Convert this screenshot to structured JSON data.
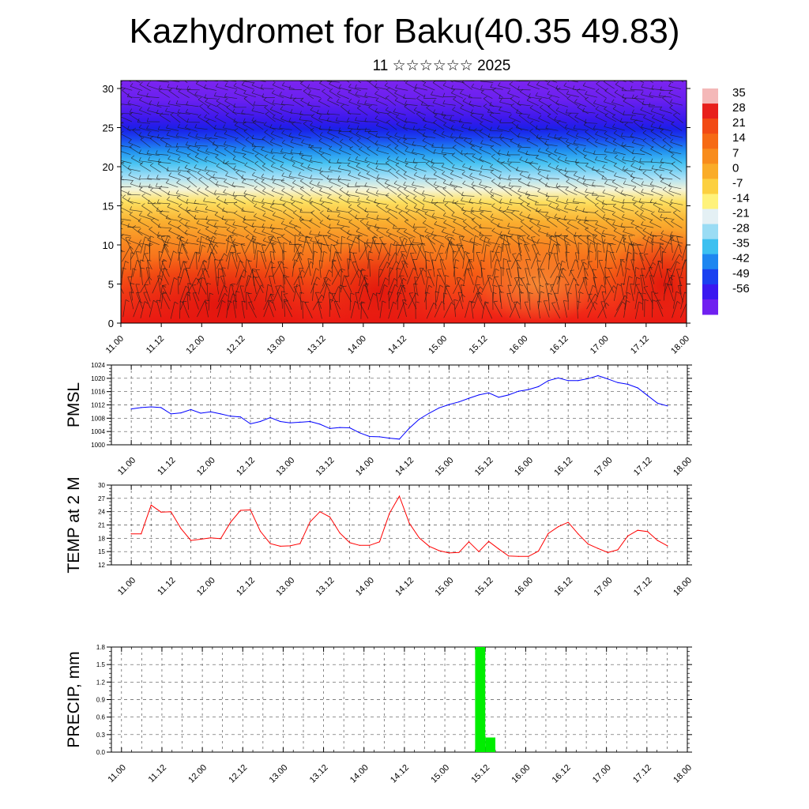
{
  "header": {
    "title": "Kazhydromet for Baku(40.35 49.83)",
    "subtitle": "11 ☆☆☆☆☆☆ 2025"
  },
  "colors": {
    "pressure_line": "#0000ff",
    "temperature_line": "#ff0000",
    "precip_bar": "#00ee00"
  },
  "chart_data": [
    {
      "type": "heatmap",
      "title": "",
      "ylabel": "",
      "xlabel": "",
      "ylim": [
        0,
        30
      ],
      "y_ticks": [
        0,
        5,
        10,
        15,
        20,
        25,
        30
      ],
      "x_ticks": [
        "11.00",
        "11.12",
        "12.00",
        "12.12",
        "13.00",
        "13.12",
        "14.00",
        "14.12",
        "15.00",
        "15.12",
        "16.00",
        "16.12",
        "17.00",
        "17.12",
        "18.00"
      ],
      "colorbar_labels": [
        "35",
        "28",
        "21",
        "14",
        "7",
        "0",
        "-7",
        "-14",
        "-21",
        "-28",
        "-35",
        "-42",
        "-49",
        "-56"
      ],
      "colorbar_colors": [
        "#f4b8b8",
        "#e8201c",
        "#f24a14",
        "#f66a14",
        "#f88c1c",
        "#faac28",
        "#fcd040",
        "#fff27a",
        "#e4f0f4",
        "#9adcf4",
        "#3cc0f0",
        "#1e86f0",
        "#1a40f0",
        "#3a18f0",
        "#7020f0"
      ],
      "overlay": "wind barbs"
    },
    {
      "type": "line",
      "ylabel": "PMSL",
      "ylim": [
        1000,
        1024
      ],
      "y_ticks": [
        1000,
        1004,
        1008,
        1012,
        1016,
        1020,
        1024
      ],
      "x_ticks": [
        "11.00",
        "11.12",
        "12.00",
        "12.12",
        "13.00",
        "13.12",
        "14.00",
        "14.12",
        "15.00",
        "15.12",
        "16.00",
        "16.12",
        "17.00",
        "17.12",
        "18.00"
      ],
      "x_range_hours": [
        -6,
        168
      ],
      "series": [
        {
          "x": [
            0,
            3,
            6,
            9,
            12,
            15,
            18,
            21,
            24,
            27,
            30,
            33,
            36,
            39,
            42,
            45,
            48,
            51,
            54,
            57,
            60,
            63,
            66,
            69,
            72,
            75,
            78,
            81,
            84,
            87,
            90,
            93,
            96,
            99,
            102,
            105,
            108,
            111,
            114,
            117,
            120,
            123,
            126,
            129,
            132,
            135,
            138,
            141,
            144,
            147,
            150,
            153,
            156,
            159,
            162
          ],
          "values": [
            1010.8,
            1011.2,
            1011.4,
            1011.2,
            1009.3,
            1009.6,
            1010.6,
            1009.5,
            1009.9,
            1009.3,
            1008.6,
            1008.4,
            1006.3,
            1007.0,
            1008.2,
            1007.0,
            1006.6,
            1006.8,
            1007.0,
            1006.2,
            1004.9,
            1005.2,
            1005.1,
            1003.6,
            1002.5,
            1002.4,
            1002.0,
            1001.7,
            1005.0,
            1007.7,
            1009.5,
            1011.1,
            1012.1,
            1012.9,
            1014.0,
            1015.0,
            1015.6,
            1014.3,
            1015.0,
            1016.1,
            1016.6,
            1017.5,
            1019.3,
            1020.1,
            1019.3,
            1019.3,
            1019.9,
            1020.8,
            1019.8,
            1018.7,
            1018.2,
            1017.1,
            1014.8,
            1012.5,
            1011.7
          ]
        }
      ]
    },
    {
      "type": "line",
      "ylabel": "TEMP at 2 M",
      "ylim": [
        12,
        30
      ],
      "y_ticks": [
        12,
        15,
        18,
        21,
        24,
        27,
        30
      ],
      "x_ticks": [
        "11.00",
        "11.12",
        "12.00",
        "12.12",
        "13.00",
        "13.12",
        "14.00",
        "14.12",
        "15.00",
        "15.12",
        "16.00",
        "16.12",
        "17.00",
        "17.12",
        "18.00"
      ],
      "x_range_hours": [
        -6,
        168
      ],
      "series": [
        {
          "x": [
            0,
            3,
            6,
            9,
            12,
            15,
            18,
            21,
            24,
            27,
            30,
            33,
            36,
            39,
            42,
            45,
            48,
            51,
            54,
            57,
            60,
            63,
            66,
            69,
            72,
            75,
            78,
            81,
            84,
            87,
            90,
            93,
            96,
            99,
            102,
            105,
            108,
            111,
            114,
            117,
            120,
            123,
            126,
            129,
            132,
            135,
            138,
            141,
            144,
            147,
            150,
            153,
            156,
            159,
            162
          ],
          "values": [
            19.0,
            19.0,
            25.5,
            23.9,
            24.0,
            20.2,
            17.5,
            17.8,
            18.1,
            17.9,
            21.6,
            24.3,
            24.4,
            19.6,
            16.8,
            16.2,
            16.3,
            16.8,
            21.7,
            24.0,
            22.8,
            19.2,
            17.0,
            16.4,
            16.4,
            17.2,
            23.6,
            27.5,
            21.4,
            18.1,
            16.2,
            15.2,
            14.7,
            14.8,
            17.2,
            15.0,
            17.3,
            15.6,
            14.0,
            13.9,
            13.9,
            15.1,
            19.1,
            20.6,
            21.6,
            19.0,
            16.7,
            15.7,
            14.8,
            15.4,
            18.5,
            19.8,
            19.5,
            17.5,
            16.3
          ]
        }
      ]
    },
    {
      "type": "bar",
      "ylabel": "PRECIP, mm",
      "ylim": [
        0,
        1.8
      ],
      "y_ticks": [
        "0.0",
        "0.3",
        "0.6",
        "0.9",
        "1.2",
        "1.5",
        "1.8"
      ],
      "x_ticks": [
        "11.00",
        "11.12",
        "12.00",
        "12.12",
        "13.00",
        "13.12",
        "14.00",
        "14.12",
        "15.00",
        "15.12",
        "16.00",
        "16.12",
        "17.00",
        "17.12",
        "18.00"
      ],
      "x_range_hours": [
        -3,
        168
      ],
      "series": [
        {
          "x": [
            105,
            108
          ],
          "values": [
            1.8,
            0.25
          ]
        }
      ]
    }
  ]
}
